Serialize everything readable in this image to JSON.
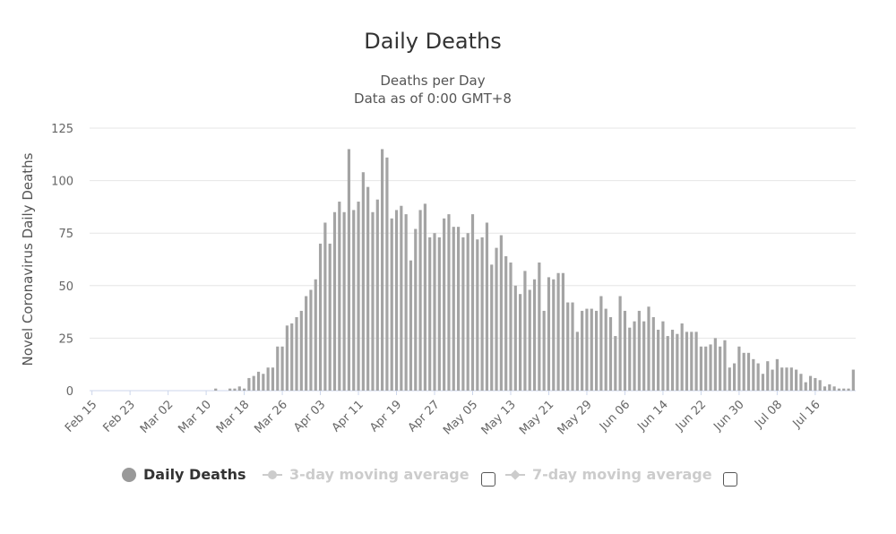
{
  "chart_data": {
    "type": "bar",
    "title": "Daily Deaths",
    "subtitle": [
      "Deaths per Day",
      "Data as of 0:00 GMT+8"
    ],
    "ylabel": "Novel Coronavirus Daily Deaths",
    "ylim": [
      0,
      125
    ],
    "yticks": [
      0,
      25,
      50,
      75,
      100,
      125
    ],
    "grid": true,
    "legend_placement": "bottom",
    "xtick_labels": [
      "Feb 15",
      "Feb 23",
      "Mar 02",
      "Mar 10",
      "Mar 18",
      "Mar 26",
      "Apr 03",
      "Apr 11",
      "Apr 19",
      "Apr 27",
      "May 05",
      "May 13",
      "May 21",
      "May 29",
      "Jun 06",
      "Jun 14",
      "Jun 22",
      "Jun 30",
      "Jul 08",
      "Jul 16"
    ],
    "x_start": "Feb 15",
    "x_end": "Jul 21",
    "values": [
      0,
      0,
      0,
      0,
      0,
      0,
      0,
      0,
      0,
      0,
      0,
      0,
      0,
      0,
      0,
      0,
      0,
      0,
      0,
      0,
      0,
      0,
      0,
      0,
      0,
      0,
      1,
      0,
      0,
      1,
      1,
      2,
      1,
      6,
      7,
      9,
      8,
      11,
      11,
      21,
      21,
      31,
      32,
      35,
      38,
      45,
      48,
      53,
      70,
      80,
      70,
      85,
      90,
      85,
      115,
      86,
      90,
      104,
      97,
      85,
      91,
      115,
      111,
      82,
      86,
      88,
      84,
      62,
      77,
      86,
      89,
      73,
      75,
      73,
      82,
      84,
      78,
      78,
      73,
      75,
      84,
      72,
      73,
      80,
      60,
      68,
      74,
      64,
      61,
      50,
      46,
      57,
      48,
      53,
      61,
      38,
      54,
      53,
      56,
      56,
      42,
      42,
      28,
      38,
      39,
      39,
      38,
      45,
      39,
      35,
      26,
      45,
      38,
      30,
      33,
      38,
      33,
      40,
      35,
      29,
      33,
      26,
      29,
      27,
      32,
      28,
      28,
      28,
      21,
      21,
      22,
      25,
      21,
      24,
      11,
      13,
      21,
      18,
      18,
      15,
      13,
      8,
      14,
      10,
      15,
      11,
      11,
      11,
      10,
      8,
      4,
      7,
      6,
      5,
      2,
      3,
      2,
      1,
      1,
      1,
      10
    ],
    "series": [
      {
        "name": "Daily Deaths",
        "color": "#a4a4a4",
        "visible": true
      },
      {
        "name": "3-day moving average",
        "color": "#cccccc",
        "visible": false
      },
      {
        "name": "7-day moving average",
        "color": "#cccccc",
        "visible": false
      }
    ]
  }
}
